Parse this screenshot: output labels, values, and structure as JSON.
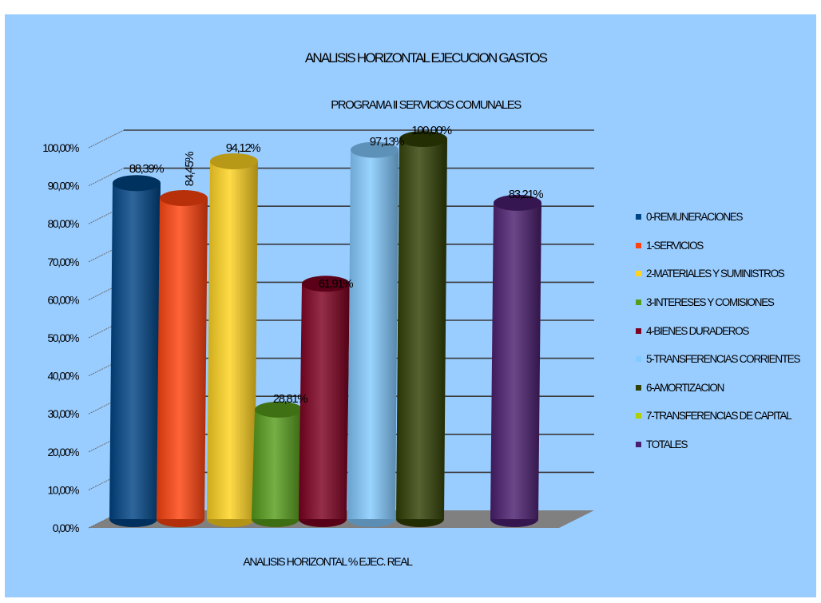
{
  "chart_data": {
    "type": "bar",
    "title": "ANALISIS HORIZONTAL EJECUCION GASTOS",
    "subtitle": "PROGRAMA II SERVICIOS COMUNALES",
    "xlabel": "ANALISIS HORIZONTAL % EJEC. REAL",
    "ylabel": "",
    "ylim": [
      0,
      100
    ],
    "yticks": [
      "0,00%",
      "10,00%",
      "20,00%",
      "30,00%",
      "40,00%",
      "50,00%",
      "60,00%",
      "70,00%",
      "80,00%",
      "90,00%",
      "100,00%"
    ],
    "grid": true,
    "legend_position": "right",
    "series": [
      {
        "name": "0-REMUNERACIONES",
        "value": 88.39,
        "label": "88,39%",
        "color": "#004586"
      },
      {
        "name": "1-SERVICIOS",
        "value": 84.45,
        "label": "84,45%",
        "color": "#ff420e"
      },
      {
        "name": "2-MATERIALES Y SUMINISTROS",
        "value": 94.12,
        "label": "94,12%",
        "color": "#ffd320"
      },
      {
        "name": "3-INTERESES Y COMISIONES",
        "value": 28.81,
        "label": "28,81%",
        "color": "#579d1c"
      },
      {
        "name": "4-BIENES DURADEROS",
        "value": 61.91,
        "label": "61,91%",
        "color": "#7e0021"
      },
      {
        "name": "5-TRANSFERENCIAS CORRIENTES",
        "value": 97.13,
        "label": "97,13%",
        "color": "#83caff"
      },
      {
        "name": "6-AMORTIZACION",
        "value": 100.0,
        "label": "100,00%",
        "color": "#314004"
      },
      {
        "name": "7-TRANSFERENCIAS DE CAPITAL",
        "value": 0,
        "label": "",
        "color": "#aecf00"
      },
      {
        "name": "TOTALES",
        "value": 83.21,
        "label": "83,21%",
        "color": "#4b1f6f"
      }
    ]
  }
}
